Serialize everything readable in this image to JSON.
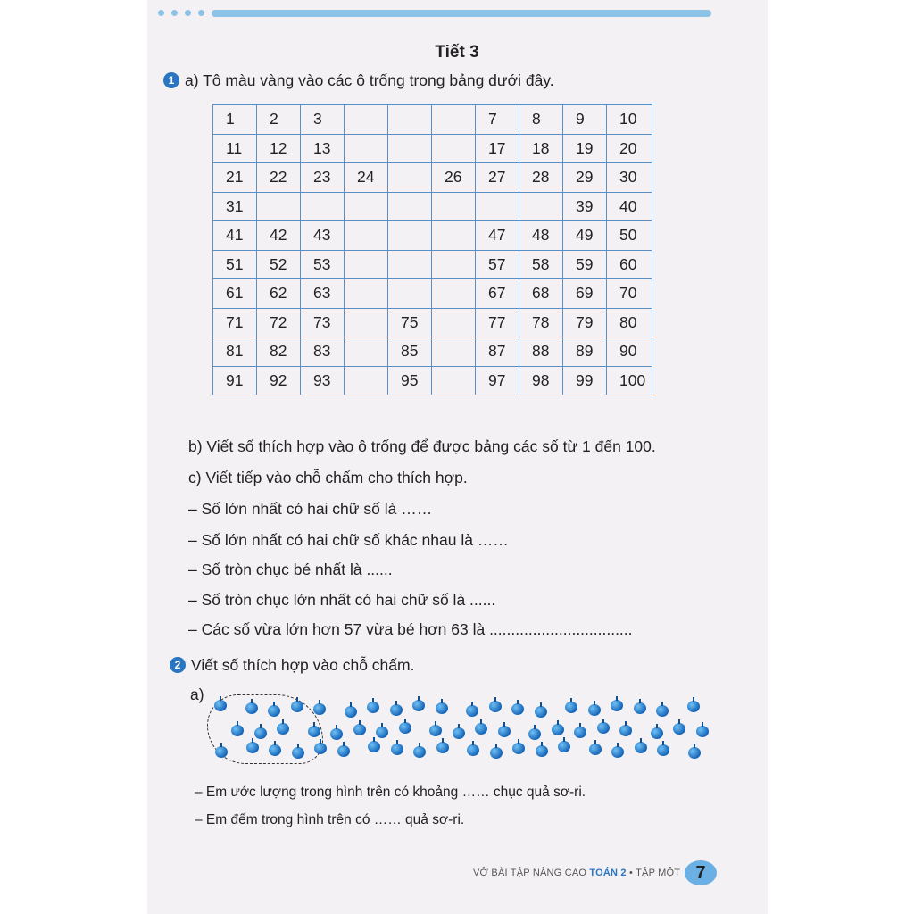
{
  "title": "Tiết 3",
  "ex1": {
    "number": "1",
    "a": "a) Tô màu vàng vào các ô trống trong bảng dưới đây.",
    "grid": [
      [
        "1",
        "2",
        "3",
        "",
        "",
        "",
        "7",
        "8",
        "9",
        "10"
      ],
      [
        "11",
        "12",
        "13",
        "",
        "",
        "",
        "17",
        "18",
        "19",
        "20"
      ],
      [
        "21",
        "22",
        "23",
        "24",
        "",
        "26",
        "27",
        "28",
        "29",
        "30"
      ],
      [
        "31",
        "",
        "",
        "",
        "",
        "",
        "",
        "",
        "39",
        "40"
      ],
      [
        "41",
        "42",
        "43",
        "",
        "",
        "",
        "47",
        "48",
        "49",
        "50"
      ],
      [
        "51",
        "52",
        "53",
        "",
        "",
        "",
        "57",
        "58",
        "59",
        "60"
      ],
      [
        "61",
        "62",
        "63",
        "",
        "",
        "",
        "67",
        "68",
        "69",
        "70"
      ],
      [
        "71",
        "72",
        "73",
        "",
        "75",
        "",
        "77",
        "78",
        "79",
        "80"
      ],
      [
        "81",
        "82",
        "83",
        "",
        "85",
        "",
        "87",
        "88",
        "89",
        "90"
      ],
      [
        "91",
        "92",
        "93",
        "",
        "95",
        "",
        "97",
        "98",
        "99",
        "100"
      ]
    ],
    "b": "b) Viết số thích hợp vào ô trống để được bảng các số từ 1 đến 100.",
    "c": "c) Viết tiếp vào chỗ chấm cho thích hợp.",
    "c_items": [
      "– Số lớn nhất có hai chữ số là ……",
      "– Số lớn nhất có hai chữ số khác nhau là ……",
      "– Số tròn chục bé nhất là ......",
      "– Số tròn chục lớn nhất có hai chữ số là ......",
      "– Các số vừa lớn hơn 57 vừa bé hơn 63 là ................................."
    ]
  },
  "ex2": {
    "number": "2",
    "heading": "Viết số thích hợp vào chỗ chấm.",
    "a": "a)",
    "items": [
      "– Em ước lượng trong hình trên có khoảng …… chục quả sơ-ri.",
      "– Em đếm trong hình trên có …… quả sơ-ri."
    ]
  },
  "footer": {
    "book": "VỞ BÀI TẬP NÂNG CAO ",
    "subject": "TOÁN 2",
    "volume": " • TẬP MỘT",
    "page": "7"
  },
  "colors": {
    "accent": "#2a76c0",
    "grid": "#5a8fc6",
    "cherry": "#1a7fd0"
  }
}
